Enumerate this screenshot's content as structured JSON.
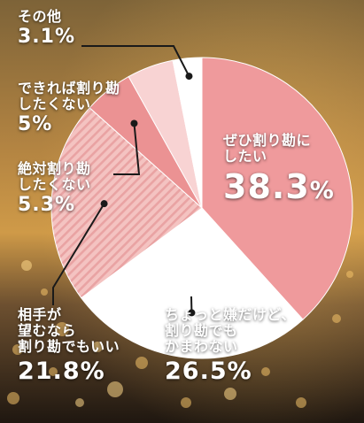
{
  "chart_data": {
    "type": "pie",
    "slices": [
      {
        "label": "ぜひ割り勘にしたい",
        "value": 38.3,
        "display": "38.3%",
        "color": "#ef9a9c"
      },
      {
        "label": "ちょっと嫌だけど、割り勘でもかまわない",
        "value": 26.5,
        "display": "26.5%",
        "color": "#ffffff"
      },
      {
        "label": "相手が望むなら割り勘でもいい",
        "value": 21.8,
        "display": "21.8%",
        "color": "#f3b8b6",
        "hatched": true
      },
      {
        "label": "絶対割り勘したくない",
        "value": 5.3,
        "display": "5.3%",
        "color": "#eb9293"
      },
      {
        "label": "できれば割り勘したくない",
        "value": 5,
        "display": "5%",
        "color": "#f8d3d3"
      },
      {
        "label": "その他",
        "value": 3.1,
        "display": "3.1%",
        "color": "#ffffff"
      }
    ]
  },
  "labels": {
    "yes": {
      "line1": "ぜひ割り勘に",
      "line2": "したい",
      "pct": "38.3",
      "unit": "%"
    },
    "ok": {
      "line1": "ちょっと嫌だけど、",
      "line2": "割り勘でも",
      "line3": "かまわない",
      "pct": "26.5%"
    },
    "ifwant": {
      "line1": "相手が",
      "line2": "望むなら",
      "line3": "割り勘でもいい",
      "pct": "21.8%"
    },
    "never": {
      "line1": "絶対割り勘",
      "line2": "したくない",
      "pct": "5.3%"
    },
    "rather": {
      "line1": "できれば割り勘",
      "line2": "したくない",
      "pct": "5%"
    },
    "other": {
      "line1": "その他",
      "pct": "3.1%"
    }
  },
  "colors": {
    "bg_top": "#8a6a3a",
    "bg_mid": "#c89446",
    "bg_bottom": "#2a1e14"
  }
}
